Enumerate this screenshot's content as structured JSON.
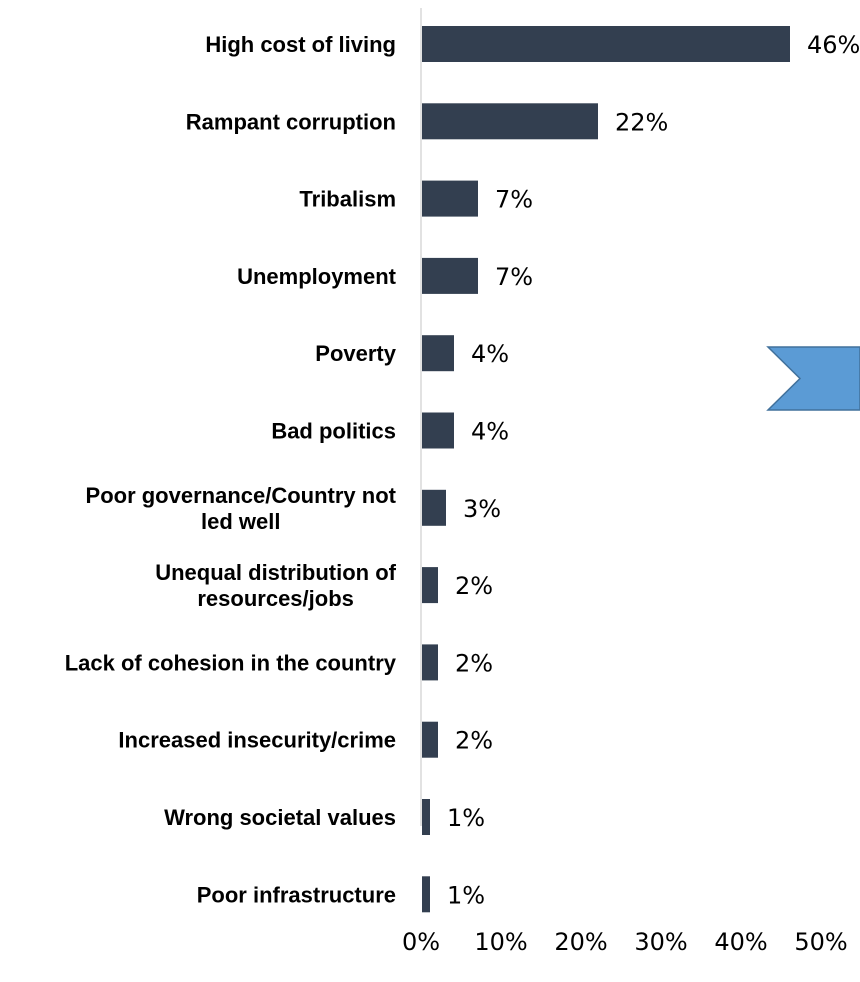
{
  "chart_data": {
    "type": "bar",
    "orientation": "horizontal",
    "categories": [
      [
        "High cost of  living"
      ],
      [
        "Rampant corruption"
      ],
      [
        "Tribalism"
      ],
      [
        "Unemployment"
      ],
      [
        "Poverty"
      ],
      [
        "Bad politics"
      ],
      [
        "Poor governance/Country not",
        "led well"
      ],
      [
        "Unequal distribution of",
        "resources/jobs"
      ],
      [
        "Lack of cohesion in the country"
      ],
      [
        "Increased insecurity/crime"
      ],
      [
        "Wrong societal values"
      ],
      [
        "Poor infrastructure"
      ]
    ],
    "values": [
      46,
      22,
      7,
      7,
      4,
      4,
      3,
      2,
      2,
      2,
      1,
      1
    ],
    "value_labels": [
      "46%",
      "22%",
      "7%",
      "7%",
      "4%",
      "4%",
      "3%",
      "2%",
      "2%",
      "2%",
      "1%",
      "1%"
    ],
    "xlim": [
      0,
      50
    ],
    "xticks": [
      "0%",
      "10%",
      "20%",
      "30%",
      "40%",
      "50%"
    ],
    "bar_color": "#333f50",
    "grid": false
  },
  "decoration": {
    "chevron_fill": "#5b9bd5",
    "chevron_stroke": "#41719c"
  }
}
